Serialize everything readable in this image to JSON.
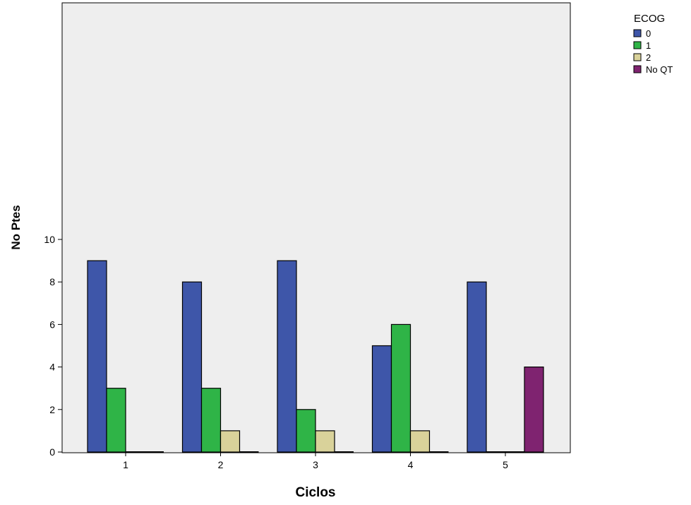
{
  "chart_data": {
    "type": "bar",
    "xlabel": "Ciclos",
    "ylabel": "No Ptes",
    "categories": [
      "1",
      "2",
      "3",
      "4",
      "5"
    ],
    "ylim": [
      0,
      10.3
    ],
    "yticks": [
      "0",
      "2",
      "4",
      "6",
      "8",
      "10"
    ],
    "grid": false,
    "legend_title": "ECOG",
    "legend_position": "right",
    "series": [
      {
        "name": "0",
        "color": "#3e56a9",
        "values": [
          9,
          8,
          9,
          5,
          8
        ]
      },
      {
        "name": "1",
        "color": "#2fb447",
        "values": [
          3,
          3,
          2,
          6,
          0
        ]
      },
      {
        "name": "2",
        "color": "#d9d29a",
        "values": [
          0,
          1,
          1,
          1,
          0
        ]
      },
      {
        "name": "No QT",
        "color": "#7f2370",
        "values": [
          0,
          0,
          0,
          0,
          4
        ]
      }
    ],
    "plot_background": "#eeeeee"
  }
}
